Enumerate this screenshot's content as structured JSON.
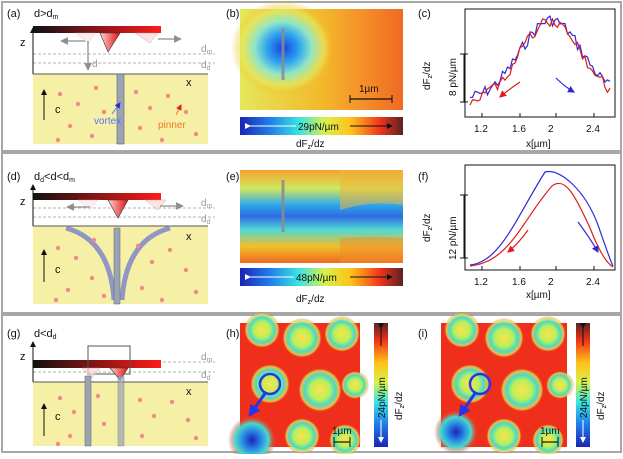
{
  "row_a": {
    "panel_label": "(a)",
    "condition": "d>d",
    "condition_sub": "m",
    "axis_z": "z",
    "axis_x": "x",
    "axis_c": "c",
    "d_label": "d",
    "dm": "d",
    "dm_sub": "m",
    "dd": "d",
    "dd_sub": "d",
    "vortex": "vortex",
    "pinner": "pinner"
  },
  "row_b": {
    "panel_label": "(b)",
    "scale_bar": "1µm",
    "colorbar_text": "29pN/µm",
    "colorbar_axis": "dF",
    "colorbar_axis_sub": "z",
    "colorbar_axis_tail": "/dz"
  },
  "row_c": {
    "panel_label": "(c)",
    "ylabel": "dF",
    "ylabel_sub": "z",
    "ylabel_tail": "/dz",
    "scale_label": "8 pN/µm",
    "xlabel": "x[µm]",
    "xticks": [
      "1.2",
      "1.6",
      "2",
      "2.4"
    ]
  },
  "row_d": {
    "panel_label": "(d)",
    "condition": "d",
    "condition_sub": "d",
    "condition_mid": "<d<d",
    "condition_sub2": "m",
    "axis_z": "z",
    "axis_x": "x",
    "axis_c": "c",
    "dm": "d",
    "dm_sub": "m",
    "dd": "d",
    "dd_sub": "d"
  },
  "row_e": {
    "panel_label": "(e)",
    "colorbar_text": "48pN/µm",
    "colorbar_axis": "dF",
    "colorbar_axis_sub": "z",
    "colorbar_axis_tail": "/dz"
  },
  "row_f": {
    "panel_label": "(f)",
    "ylabel": "dF",
    "ylabel_sub": "z",
    "ylabel_tail": "/dz",
    "scale_label": "12 pN/µm",
    "xlabel": "x[µm]",
    "xticks": [
      "1.2",
      "1.6",
      "2",
      "2.4"
    ]
  },
  "row_g": {
    "panel_label": "(g)",
    "condition": "d<d",
    "condition_sub": "d",
    "axis_z": "z",
    "axis_x": "x",
    "axis_c": "c",
    "dm": "d",
    "dm_sub": "m",
    "dd": "d",
    "dd_sub": "d"
  },
  "row_h": {
    "panel_label": "(h)",
    "scale_bar": "1µm",
    "colorbar_text": "24pN/µm",
    "colorbar_axis": "dF",
    "colorbar_axis_sub": "z",
    "colorbar_axis_tail": "/dz"
  },
  "row_i": {
    "panel_label": "(i)",
    "scale_bar": "1µm",
    "colorbar_text": "24pN/µm",
    "colorbar_axis": "dF",
    "colorbar_axis_sub": "z",
    "colorbar_axis_tail": "/dz"
  },
  "colors": {
    "frame": "#a7a7a7",
    "sample": "#f6f0a6",
    "pinner": "#f08a8a",
    "vortex": "#7f86c9",
    "blue_line": "#2b2bd6",
    "red_line": "#e01b1b",
    "annotation_blue": "#4f76ff",
    "annotation_orange": "#f07a1a"
  }
}
